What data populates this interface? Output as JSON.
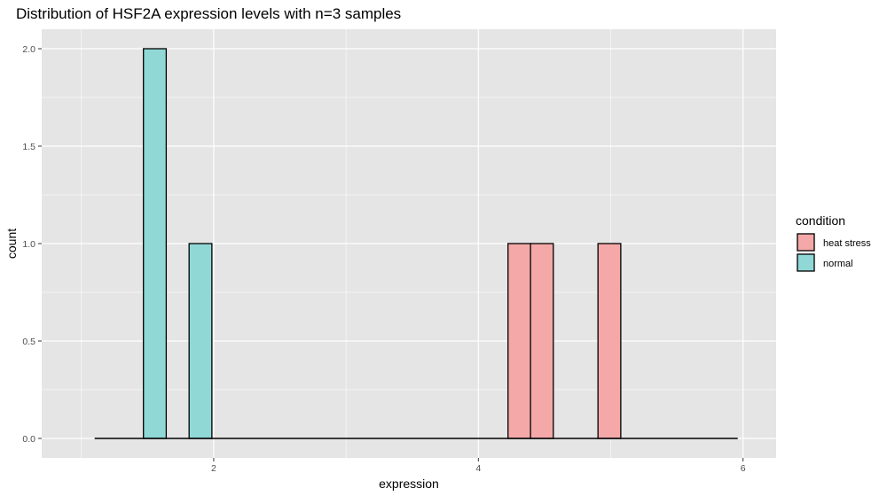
{
  "chart_data": {
    "type": "bar",
    "title": "Distribution of HSF2A expression levels with n=3 samples",
    "xlabel": "expression",
    "ylabel": "count",
    "xlim": [
      0.7,
      6.25
    ],
    "ylim": [
      -0.1,
      2.1
    ],
    "x_ticks": [
      2,
      4,
      6
    ],
    "x_tick_labels": [
      "2",
      "4",
      "6"
    ],
    "y_ticks": [
      0,
      0.5,
      1,
      1.5,
      2
    ],
    "y_tick_labels": [
      "0.0",
      "0.5",
      "1.0",
      "1.5",
      "2.0"
    ],
    "grid": true,
    "binwidth": 0.1723,
    "bin_range": [
      1.1,
      5.96
    ],
    "legend": {
      "title": "condition",
      "position": "right",
      "entries": [
        {
          "label": "heat stress",
          "color": "#f4a9a8"
        },
        {
          "label": "normal",
          "color": "#8fd8d6"
        }
      ]
    },
    "series": [
      {
        "name": "normal",
        "color": "#8fd8d6",
        "bars": [
          {
            "x_center": 1.555,
            "count": 2
          },
          {
            "x_center": 1.9,
            "count": 1
          }
        ]
      },
      {
        "name": "heat stress",
        "color": "#f4a9a8",
        "bars": [
          {
            "x_center": 4.31,
            "count": 1
          },
          {
            "x_center": 4.48,
            "count": 1
          },
          {
            "x_center": 4.99,
            "count": 1
          }
        ]
      }
    ],
    "panel_background": "#e5e5e5",
    "grid_color": "#ffffff"
  }
}
